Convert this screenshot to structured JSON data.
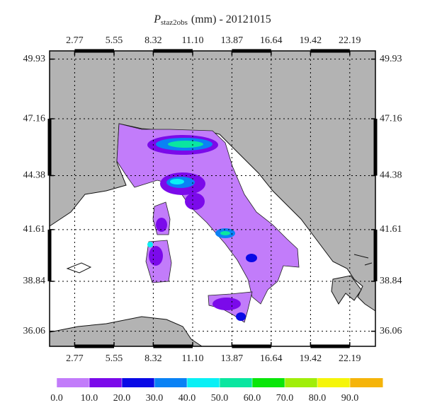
{
  "chart_data": {
    "type": "map",
    "title_symbol": "P",
    "title_subscript": "staz2obs",
    "title_text": "(mm) - 20121015",
    "projection": "mercator",
    "xlim": [
      1,
      24
    ],
    "ylim": [
      35.2,
      50.3
    ],
    "xticks": [
      2.77,
      5.55,
      8.32,
      {
        "value": 11.1,
        "label": "11.10"
      },
      13.87,
      16.64,
      19.42,
      22.19
    ],
    "yticks": [
      36.06,
      38.84,
      41.61,
      44.38,
      47.16,
      49.93
    ],
    "grid": true,
    "colorbar_lim": [
      0,
      100
    ],
    "colorbar_ticks": [
      {
        "value": 0,
        "label": "0.0"
      },
      {
        "value": 10,
        "label": "10.0"
      },
      {
        "value": 20,
        "label": "20.0"
      },
      {
        "value": 30,
        "label": "30.0"
      },
      {
        "value": 40,
        "label": "40.0"
      },
      {
        "value": 50,
        "label": "50.0"
      },
      {
        "value": 60,
        "label": "60.0"
      },
      {
        "value": 70,
        "label": "70.0"
      },
      {
        "value": 80,
        "label": "80.0"
      },
      {
        "value": 90,
        "label": "90.0"
      }
    ],
    "colorbar_colors": [
      "#c27cfa",
      "#7b0aea",
      "#0a0ae6",
      "#0a82f5",
      "#0af0f5",
      "#0ae6a0",
      "#0ae60a",
      "#a0ee0a",
      "#f5f50a",
      "#f5b40a"
    ]
  }
}
